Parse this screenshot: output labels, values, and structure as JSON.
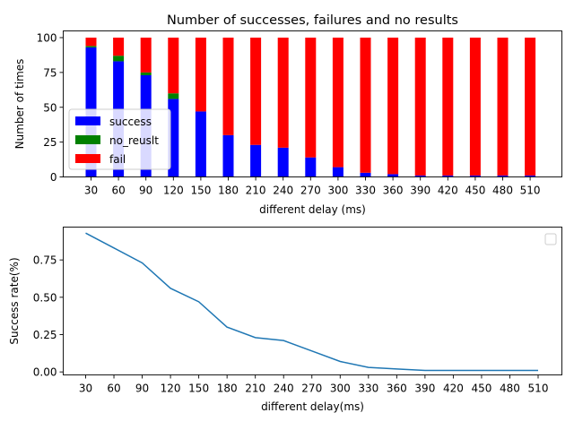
{
  "chart_data": [
    {
      "type": "bar",
      "stacked": true,
      "title": "Number of successes, failures and no results",
      "xlabel": "different delay (ms)",
      "ylabel": "Number of times",
      "categories": [
        "30",
        "60",
        "90",
        "120",
        "150",
        "180",
        "210",
        "240",
        "270",
        "300",
        "330",
        "360",
        "390",
        "420",
        "450",
        "480",
        "510"
      ],
      "ylim": [
        0,
        100
      ],
      "yticks": [
        0,
        25,
        50,
        75,
        100
      ],
      "legend_position": "center-left",
      "series": [
        {
          "name": "success",
          "color": "#0000ff",
          "values": [
            93,
            83,
            73,
            56,
            47,
            30,
            23,
            21,
            14,
            7,
            3,
            2,
            1,
            1,
            1,
            1,
            1
          ]
        },
        {
          "name": "no_reuslt",
          "color": "#008000",
          "values": [
            1,
            4,
            2,
            4,
            0,
            0,
            0,
            0,
            0,
            0,
            0,
            0,
            0,
            0,
            0,
            0,
            0
          ]
        },
        {
          "name": "fail",
          "color": "#ff0000",
          "values": [
            6,
            13,
            25,
            40,
            53,
            70,
            77,
            79,
            86,
            93,
            97,
            98,
            99,
            99,
            99,
            99,
            99
          ]
        }
      ]
    },
    {
      "type": "line",
      "xlabel": "different delay(ms)",
      "ylabel": "Success rate(%)",
      "x": [
        30,
        60,
        90,
        120,
        150,
        180,
        210,
        240,
        270,
        300,
        330,
        360,
        390,
        420,
        450,
        480,
        510
      ],
      "ylim": [
        -0.02,
        0.97
      ],
      "yticks": [
        "0.00",
        "0.25",
        "0.50",
        "0.75"
      ],
      "legend": "empty-box-top-right",
      "series": [
        {
          "color": "#1f77b4",
          "values": [
            0.93,
            0.83,
            0.73,
            0.56,
            0.47,
            0.3,
            0.23,
            0.21,
            0.14,
            0.07,
            0.03,
            0.02,
            0.01,
            0.01,
            0.01,
            0.01,
            0.01
          ]
        }
      ]
    }
  ]
}
